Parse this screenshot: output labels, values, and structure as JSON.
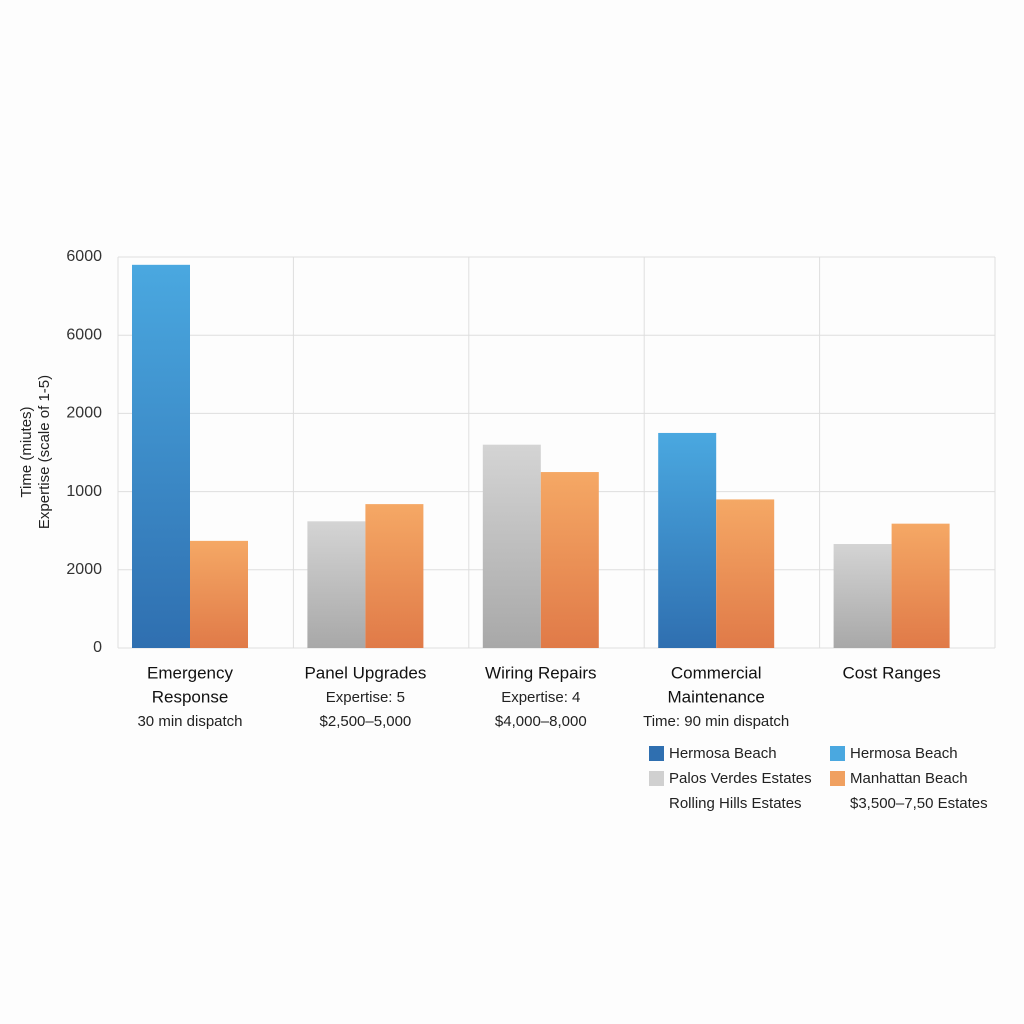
{
  "chart_data": {
    "type": "bar",
    "y_label": [
      "Time (miutes)",
      "Expertise (scale of 1-5)"
    ],
    "categories": [
      [
        "Emergency",
        "Response"
      ],
      [
        "Panel Upgrades"
      ],
      [
        "Wiring Repairs"
      ],
      [
        "Commercial",
        "Maintenance"
      ],
      [
        "Cost Ranges"
      ]
    ],
    "category_notes": [
      [
        "30 min dispatch"
      ],
      [
        "Expertise: 5",
        "$2,500–5,000"
      ],
      [
        "Expertise: 4",
        "$4,000–8,000"
      ],
      [
        "Time: 90 min dispatch"
      ],
      []
    ],
    "series": [
      {
        "color": "#4aa8e0",
        "color_dark": "#2f6fb0",
        "values": [
          4.9,
          null,
          null,
          2.75,
          null
        ]
      },
      {
        "color": "#d4d4d4",
        "color_dark": "#a8a8a8",
        "values": [
          null,
          1.62,
          2.6,
          null,
          1.33
        ]
      },
      {
        "color": "#f5a865",
        "color_dark": "#e07a48",
        "values": [
          1.37,
          1.84,
          2.25,
          1.9,
          1.59
        ]
      }
    ],
    "ylim": [
      0,
      5
    ],
    "yticks": [
      {
        "value": 0,
        "label": "0"
      },
      {
        "value": 1,
        "label": "2000"
      },
      {
        "value": 2,
        "label": "1000"
      },
      {
        "value": 3,
        "label": "2000"
      },
      {
        "value": 4,
        "label": "6000"
      },
      {
        "value": 5,
        "label": "6000"
      }
    ],
    "grid": true,
    "legend": [
      {
        "name": "Hermosa Beach",
        "color": "#2f6fb0"
      },
      {
        "name": "Hermosa Beach",
        "color": "#4aa8e0"
      },
      {
        "name": "Palos Verdes Estates",
        "color": "#d0d0d0"
      },
      {
        "name": "Manhattan Beach",
        "color": "#f0a060"
      },
      {
        "name": "Rolling Hills Estates"
      },
      {
        "name": "$3,500–7,50 Estates"
      }
    ]
  }
}
